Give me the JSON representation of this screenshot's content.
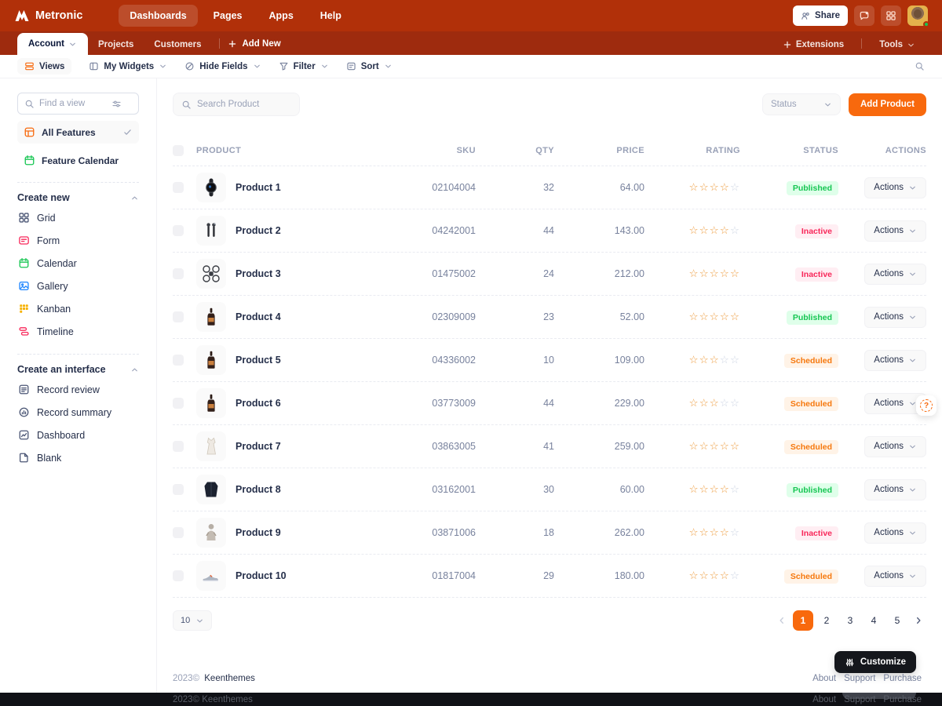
{
  "colors": {
    "topbar_bg": "#b13009",
    "navbar_bg": "#9e2b0e",
    "primary_orange": "#f8690d",
    "star_filled": "#eea047",
    "star_empty": "#cfd6e4"
  },
  "topbar": {
    "brand": "Metronic",
    "nav": [
      {
        "label": "Dashboards",
        "active": true
      },
      {
        "label": "Pages",
        "active": false
      },
      {
        "label": "Apps",
        "active": false
      },
      {
        "label": "Help",
        "active": false
      }
    ],
    "share_label": "Share"
  },
  "navbar": {
    "tabs": [
      {
        "label": "Account",
        "active": true,
        "caret": true
      },
      {
        "label": "Projects",
        "active": false,
        "caret": false
      },
      {
        "label": "Customers",
        "active": false,
        "caret": false
      }
    ],
    "add_new_label": "Add New",
    "extensions_label": "Extensions",
    "tools_label": "Tools"
  },
  "toolbar": {
    "views_label": "Views",
    "items": [
      {
        "label": "My Widgets",
        "icon": "columns"
      },
      {
        "label": "Hide Fields",
        "icon": "eye-slash"
      },
      {
        "label": "Filter",
        "icon": "funnel"
      },
      {
        "label": "Sort",
        "icon": "sort"
      }
    ]
  },
  "sidebar": {
    "search_placeholder": "Find a view",
    "views": [
      {
        "label": "All Features",
        "icon": "all-features",
        "selected": true
      },
      {
        "label": "Feature Calendar",
        "icon": "calendar-green",
        "selected": false
      }
    ],
    "sections": [
      {
        "title": "Create new",
        "items": [
          {
            "label": "Grid",
            "icon": "grid4",
            "color": "#4b5675"
          },
          {
            "label": "Form",
            "icon": "form",
            "color": "#f8285a"
          },
          {
            "label": "Calendar",
            "icon": "calendar",
            "color": "#17c653"
          },
          {
            "label": "Gallery",
            "icon": "gallery",
            "color": "#1b84ff"
          },
          {
            "label": "Kanban",
            "icon": "kanban",
            "color": "#f6b100"
          },
          {
            "label": "Timeline",
            "icon": "timeline",
            "color": "#f8285a"
          }
        ]
      },
      {
        "title": "Create an interface",
        "items": [
          {
            "label": "Record review",
            "icon": "record-review",
            "color": "#4b5675"
          },
          {
            "label": "Record summary",
            "icon": "record-summary",
            "color": "#4b5675"
          },
          {
            "label": "Dashboard",
            "icon": "dashboard",
            "color": "#4b5675"
          },
          {
            "label": "Blank",
            "icon": "blank",
            "color": "#4b5675"
          }
        ]
      }
    ]
  },
  "content": {
    "search_placeholder": "Search Product",
    "status_filter_label": "Status",
    "add_button_label": "Add Product",
    "table": {
      "headers": [
        "PRODUCT",
        "SKU",
        "QTY",
        "PRICE",
        "RATING",
        "STATUS",
        "ACTIONS"
      ],
      "actions_label": "Actions",
      "rows": [
        {
          "name": "Product 1",
          "sku": "02104004",
          "qty": "32",
          "price": "64.00",
          "rating": 4,
          "status": "Published",
          "thumb": "watch"
        },
        {
          "name": "Product 2",
          "sku": "04242001",
          "qty": "44",
          "price": "143.00",
          "rating": 4,
          "status": "Inactive",
          "thumb": "earbuds"
        },
        {
          "name": "Product 3",
          "sku": "01475002",
          "qty": "24",
          "price": "212.00",
          "rating": 5,
          "status": "Inactive",
          "thumb": "drone"
        },
        {
          "name": "Product 4",
          "sku": "02309009",
          "qty": "23",
          "price": "52.00",
          "rating": 5,
          "status": "Published",
          "thumb": "wine"
        },
        {
          "name": "Product 5",
          "sku": "04336002",
          "qty": "10",
          "price": "109.00",
          "rating": 3,
          "status": "Scheduled",
          "thumb": "wine"
        },
        {
          "name": "Product 6",
          "sku": "03773009",
          "qty": "44",
          "price": "229.00",
          "rating": 3,
          "status": "Scheduled",
          "thumb": "wine"
        },
        {
          "name": "Product 7",
          "sku": "03863005",
          "qty": "41",
          "price": "259.00",
          "rating": 5,
          "status": "Scheduled",
          "thumb": "dress"
        },
        {
          "name": "Product 8",
          "sku": "03162001",
          "qty": "30",
          "price": "60.00",
          "rating": 4,
          "status": "Published",
          "thumb": "jacket"
        },
        {
          "name": "Product 9",
          "sku": "03871006",
          "qty": "18",
          "price": "262.00",
          "rating": 4,
          "status": "Inactive",
          "thumb": "hoodie"
        },
        {
          "name": "Product 10",
          "sku": "01817004",
          "qty": "29",
          "price": "180.00",
          "rating": 4,
          "status": "Scheduled",
          "thumb": "sneaker"
        }
      ],
      "status_styles": {
        "Published": {
          "bg": "#dfffea",
          "color": "#17c653"
        },
        "Inactive": {
          "bg": "#ffeef3",
          "color": "#f8285a"
        },
        "Scheduled": {
          "bg": "#fff3e7",
          "color": "#f6780d"
        }
      }
    },
    "pagination": {
      "page_size": "10",
      "pages": [
        "1",
        "2",
        "3",
        "4",
        "5"
      ],
      "active_page": "1"
    }
  },
  "footer": {
    "copyright": "2023©",
    "company": "Keenthemes",
    "links": [
      "About",
      "Support",
      "Purchase"
    ],
    "customize_label": "Customize"
  }
}
